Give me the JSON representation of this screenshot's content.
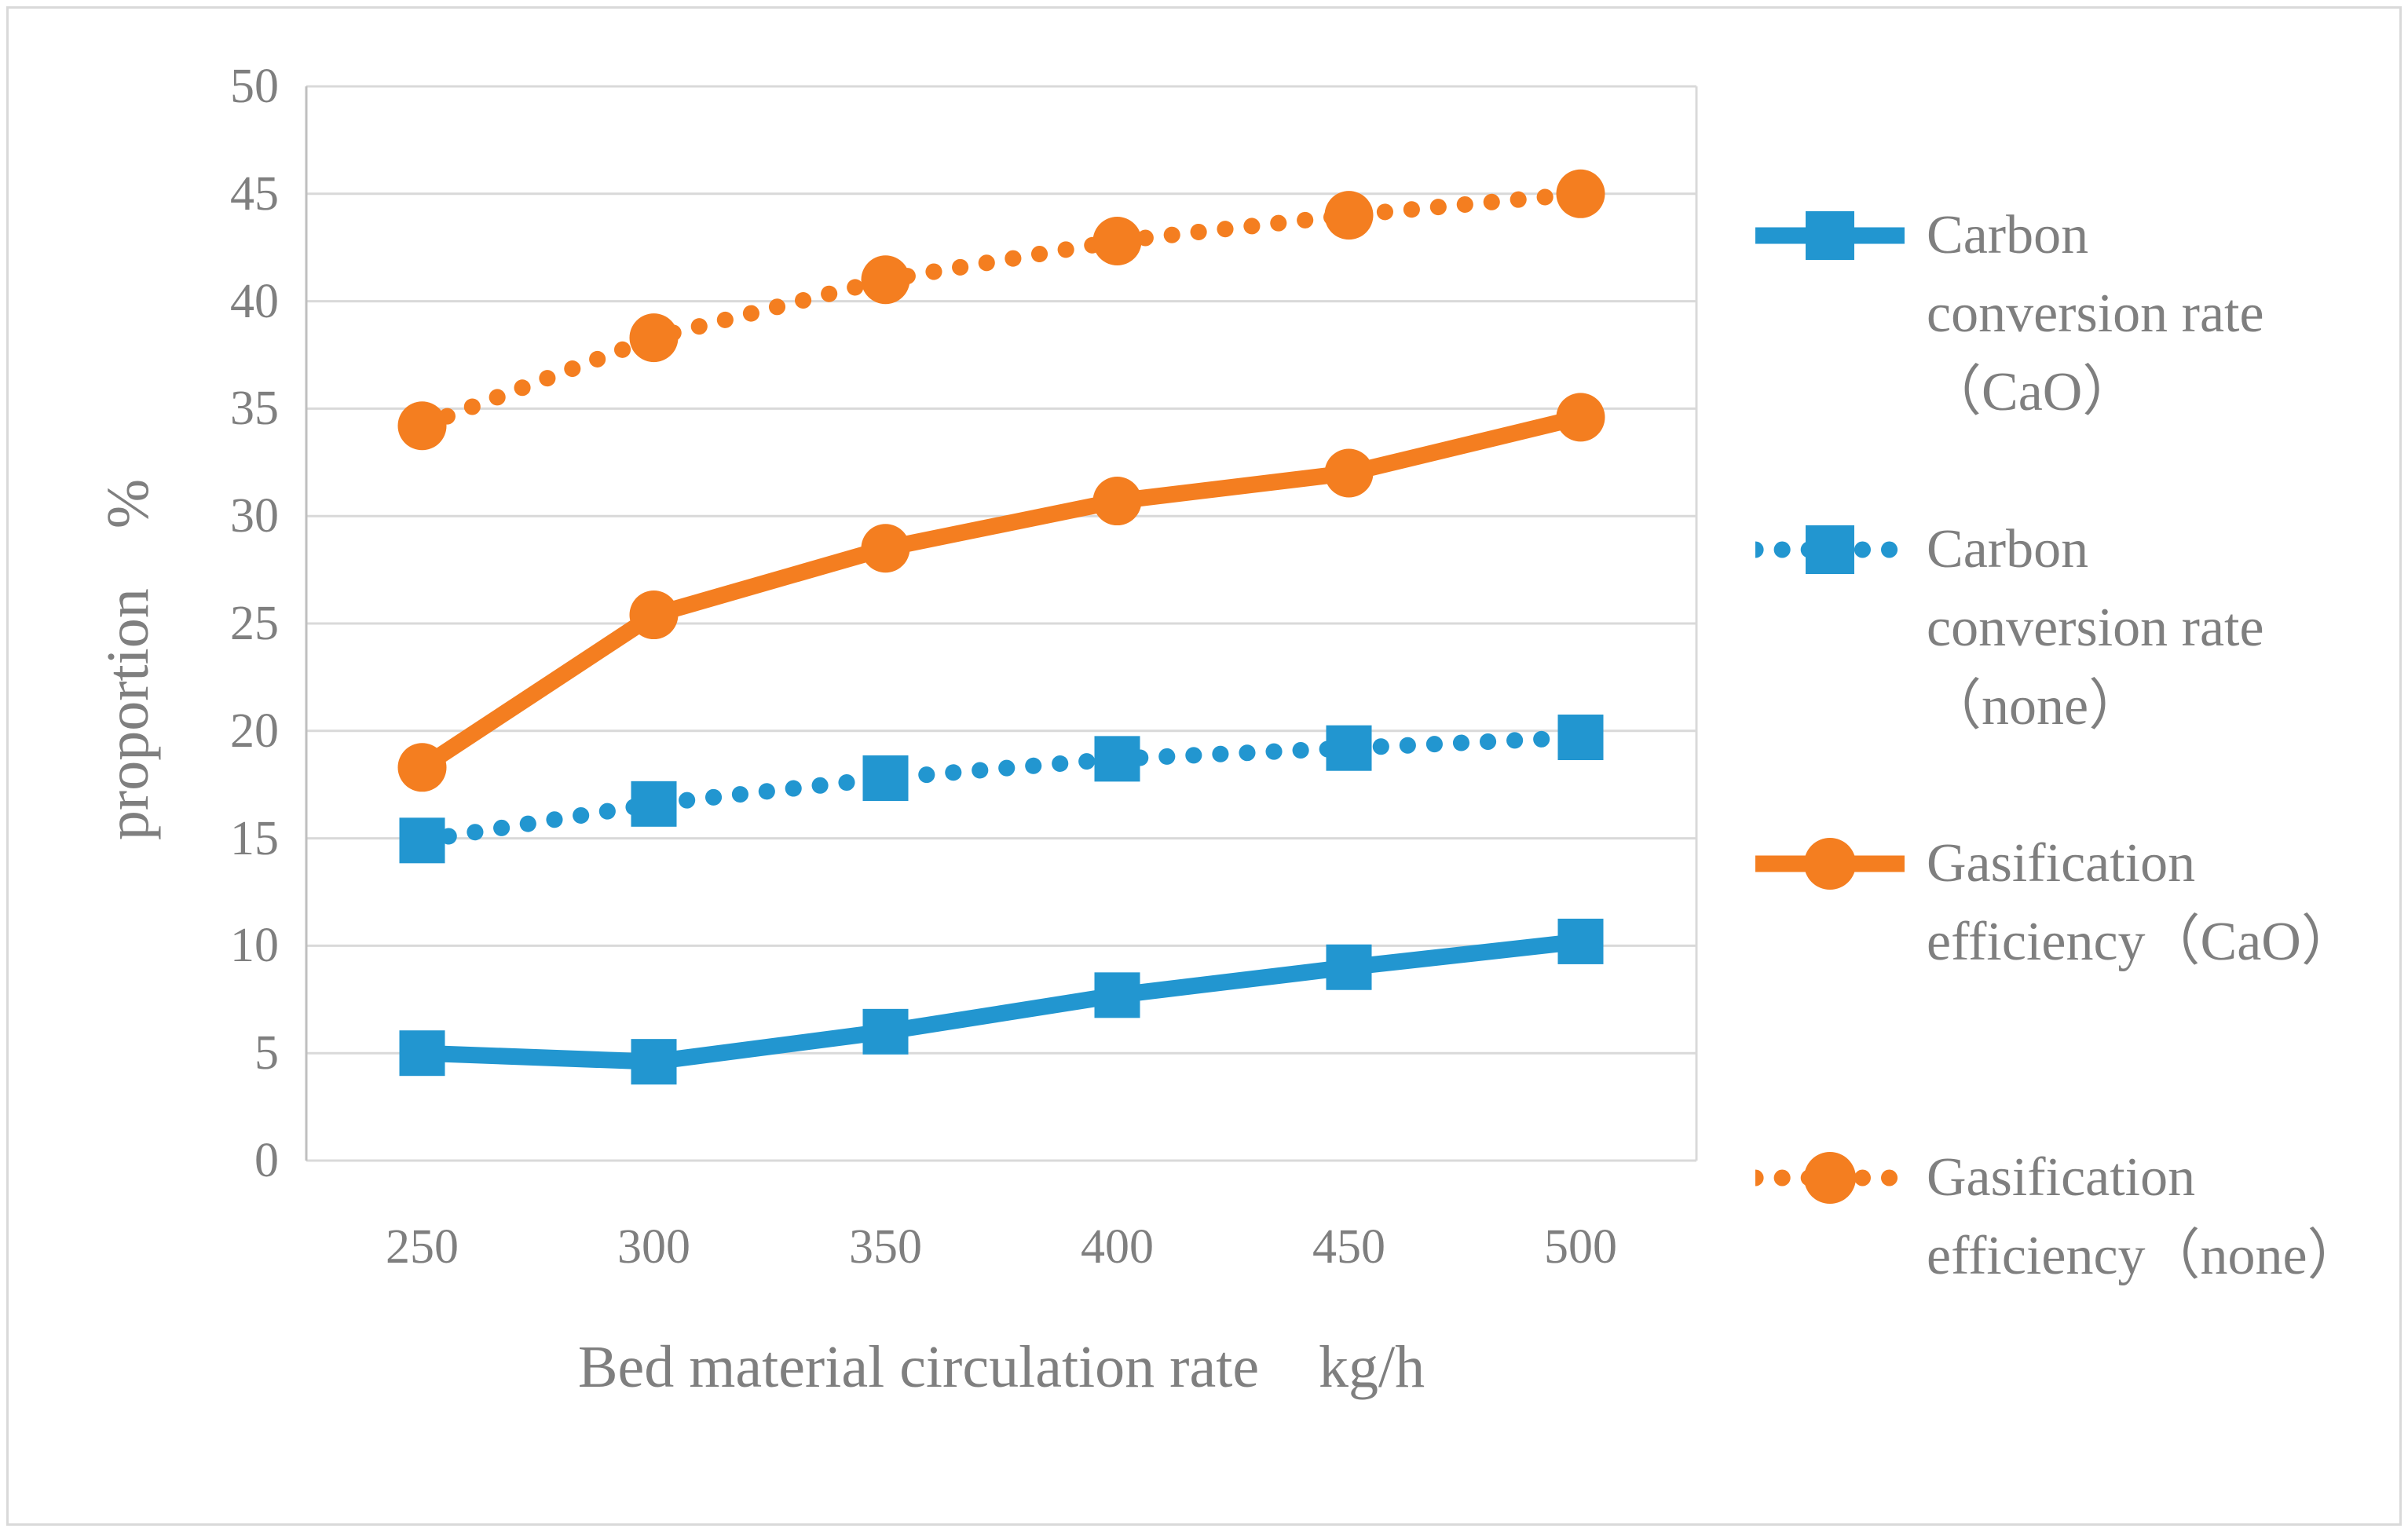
{
  "figure": {
    "background": "#FFFFFF",
    "border_color": "#D9D9D9"
  },
  "chart_data": {
    "type": "line",
    "x": [
      250,
      300,
      350,
      400,
      450,
      500
    ],
    "xlabel": "Bed material circulation rate　kg/h",
    "ylabel": "proportion　%",
    "ylim": [
      0,
      50
    ],
    "yticks": [
      0,
      5,
      10,
      15,
      20,
      25,
      30,
      35,
      40,
      45,
      50
    ],
    "grid": true,
    "legend_position": "right",
    "colors": {
      "blue": "#2296D0",
      "orange": "#F47E20",
      "gridline": "#D9D9D9",
      "axis_line": "#BFBFBF",
      "text": "#7F7F7F"
    },
    "series": [
      {
        "name": "Carbon conversion rate（CaO）",
        "legend_lines": [
          "Carbon",
          "conversion rate",
          "（CaO）"
        ],
        "color": "#2296D0",
        "line_style": "solid",
        "marker": "square",
        "values": [
          5.0,
          4.6,
          6.0,
          7.7,
          9.0,
          10.2
        ]
      },
      {
        "name": "Carbon conversion rate（none）",
        "legend_lines": [
          "Carbon",
          "conversion rate",
          "（none）"
        ],
        "color": "#2296D0",
        "line_style": "dotted",
        "marker": "square",
        "values": [
          14.9,
          16.6,
          17.8,
          18.7,
          19.2,
          19.7
        ]
      },
      {
        "name": "Gasification efficiency（CaO）",
        "legend_lines": [
          "Gasification",
          "efficiency（CaO）"
        ],
        "color": "#F47E20",
        "line_style": "solid",
        "marker": "circle",
        "values": [
          18.3,
          25.4,
          28.5,
          30.7,
          32.0,
          34.6
        ]
      },
      {
        "name": "Gasification efficiency（none）",
        "legend_lines": [
          "Gasification",
          "efficiency（none）"
        ],
        "color": "#F47E20",
        "line_style": "dotted",
        "marker": "circle",
        "values": [
          34.2,
          38.3,
          41.0,
          42.8,
          44.0,
          45.0
        ]
      }
    ]
  }
}
